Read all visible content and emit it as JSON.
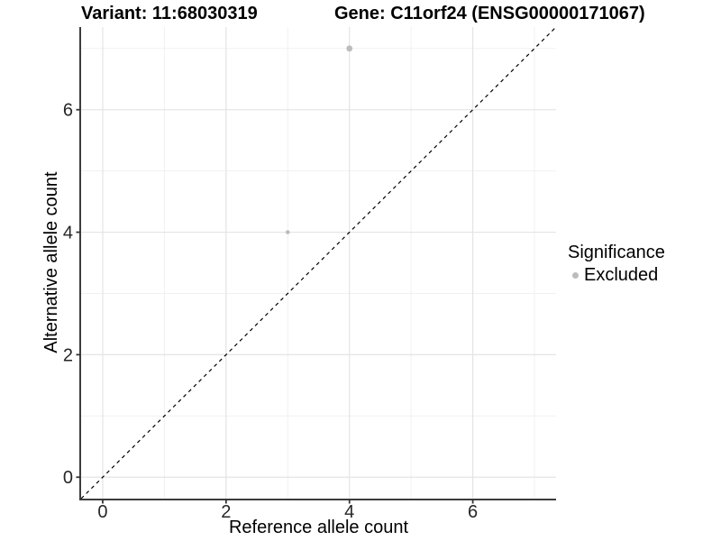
{
  "chart_data": {
    "type": "scatter",
    "titles": {
      "variant": "Variant: 11:68030319",
      "gene": "Gene: C11orf24 (ENSG00000171067)"
    },
    "xlabel": "Reference allele count",
    "ylabel": "Alternative allele count",
    "xlim": [
      -0.35,
      7.35
    ],
    "ylim": [
      -0.35,
      7.35
    ],
    "xticks": [
      0,
      2,
      4,
      6
    ],
    "yticks": [
      0,
      2,
      4,
      6
    ],
    "minor_xticks": [
      1,
      3,
      5,
      7
    ],
    "minor_yticks": [
      1,
      3,
      5,
      7
    ],
    "grid": "major+minor",
    "identity_line": {
      "style": "dashed",
      "color": "#000000"
    },
    "series": [
      {
        "name": "Excluded",
        "color": "#bcbcbc",
        "points": [
          {
            "x": 3,
            "y": 4,
            "r": 2.3
          },
          {
            "x": 4,
            "y": 7,
            "r": 3.4
          }
        ]
      }
    ],
    "legend": {
      "title": "Significance",
      "position": "right",
      "entries": [
        {
          "label": "Excluded",
          "color": "#bcbcbc"
        }
      ]
    },
    "colors": {
      "panel_bg": "#ffffff",
      "grid_major": "#e4e4e4",
      "grid_minor": "#f1f1f1",
      "axis": "#3c3c3c",
      "tick": "#333333",
      "tick_label": "#262626",
      "point": "#bcbcbc"
    }
  }
}
